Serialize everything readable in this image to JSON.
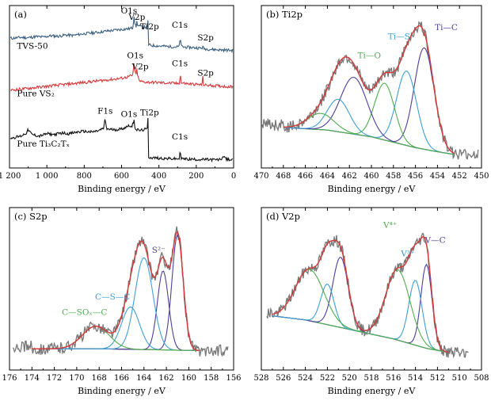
{
  "chart_data": [
    {
      "id": "a",
      "type": "line",
      "title": "(a)",
      "xlabel": "Binding energy / eV",
      "xlim": [
        1200,
        0
      ],
      "xticks": [
        1200,
        1000,
        800,
        600,
        400,
        200,
        0
      ],
      "xtick_labels": [
        "1 200",
        "1 000",
        "800",
        "600",
        "400",
        "200",
        "0"
      ],
      "series": [
        {
          "name": "TVS-50",
          "color": "#3a5f7f",
          "x": [
            1180,
            1140,
            1100,
            1060,
            1020,
            980,
            940,
            900,
            860,
            820,
            780,
            740,
            700,
            680,
            660,
            620,
            580,
            560,
            540,
            533,
            528,
            525,
            520,
            517,
            514,
            505,
            480,
            462,
            458,
            455,
            445,
            420,
            380,
            340,
            300,
            290,
            285,
            282,
            270,
            240,
            200,
            170,
            165,
            160,
            150,
            120,
            80,
            40,
            10
          ],
          "y": [
            0.815,
            0.82,
            0.818,
            0.825,
            0.822,
            0.83,
            0.827,
            0.835,
            0.832,
            0.84,
            0.846,
            0.85,
            0.856,
            0.86,
            0.862,
            0.868,
            0.872,
            0.875,
            0.88,
            0.955,
            0.9,
            0.892,
            0.885,
            0.94,
            0.895,
            0.89,
            0.885,
            0.882,
            0.93,
            0.775,
            0.77,
            0.768,
            0.765,
            0.762,
            0.76,
            0.765,
            0.83,
            0.765,
            0.76,
            0.757,
            0.755,
            0.752,
            0.76,
            0.75,
            0.748,
            0.745,
            0.742,
            0.74,
            0.738
          ]
        },
        {
          "name": "Pure VS2",
          "color": "#d63a3a",
          "x": [
            1180,
            1140,
            1100,
            1060,
            1020,
            980,
            940,
            900,
            860,
            820,
            780,
            740,
            700,
            660,
            620,
            580,
            560,
            540,
            533,
            528,
            525,
            520,
            517,
            514,
            505,
            480,
            440,
            400,
            360,
            320,
            300,
            290,
            285,
            282,
            270,
            240,
            200,
            170,
            165,
            162,
            155,
            120,
            80,
            40,
            10
          ],
          "y": [
            0.49,
            0.495,
            0.5,
            0.505,
            0.51,
            0.515,
            0.52,
            0.525,
            0.53,
            0.535,
            0.54,
            0.545,
            0.55,
            0.555,
            0.56,
            0.568,
            0.575,
            0.58,
            0.66,
            0.6,
            0.59,
            0.585,
            0.64,
            0.58,
            0.545,
            0.54,
            0.538,
            0.536,
            0.534,
            0.532,
            0.53,
            0.535,
            0.6,
            0.535,
            0.532,
            0.528,
            0.525,
            0.522,
            0.57,
            0.525,
            0.52,
            0.518,
            0.515,
            0.512,
            0.51
          ]
        },
        {
          "name": "Pure Ti3C2Tx",
          "color": "#111111",
          "x": [
            1180,
            1140,
            1110,
            1100,
            1080,
            1040,
            1000,
            960,
            920,
            880,
            840,
            800,
            760,
            720,
            695,
            688,
            680,
            640,
            600,
            570,
            560,
            545,
            533,
            528,
            520,
            500,
            480,
            462,
            458,
            455,
            445,
            420,
            380,
            340,
            300,
            290,
            285,
            282,
            270,
            240,
            200,
            160,
            120,
            80,
            60,
            55,
            40,
            10
          ],
          "y": [
            0.19,
            0.2,
            0.22,
            0.24,
            0.21,
            0.2,
            0.215,
            0.21,
            0.22,
            0.215,
            0.225,
            0.23,
            0.225,
            0.235,
            0.25,
            0.31,
            0.245,
            0.24,
            0.245,
            0.26,
            0.27,
            0.255,
            0.305,
            0.25,
            0.24,
            0.235,
            0.24,
            0.245,
            0.33,
            0.07,
            0.065,
            0.063,
            0.06,
            0.058,
            0.057,
            0.06,
            0.12,
            0.06,
            0.057,
            0.055,
            0.054,
            0.053,
            0.052,
            0.051,
            0.06,
            0.08,
            0.055,
            0.05
          ]
        }
      ],
      "series_labels": [
        {
          "text": "TVS-50",
          "x": 1160,
          "y": 0.75
        },
        {
          "text": "Pure VS₂",
          "x": 1160,
          "y": 0.45
        },
        {
          "text": "Pure Ti₃C₂Tₓ",
          "x": 1160,
          "y": 0.135
        }
      ],
      "annotations": [
        {
          "text": "O1s",
          "x": 560,
          "y": 0.97
        },
        {
          "text": "V2p",
          "x": 518,
          "y": 0.93
        },
        {
          "text": "Ti2p",
          "x": 450,
          "y": 0.87
        },
        {
          "text": "C1s",
          "x": 288,
          "y": 0.88
        },
        {
          "text": "S2p",
          "x": 150,
          "y": 0.8
        },
        {
          "text": "O1s",
          "x": 527,
          "y": 0.69
        },
        {
          "text": "V2p",
          "x": 500,
          "y": 0.62
        },
        {
          "text": "C1s",
          "x": 288,
          "y": 0.64
        },
        {
          "text": "S2p",
          "x": 150,
          "y": 0.58
        },
        {
          "text": "F1s",
          "x": 688,
          "y": 0.34
        },
        {
          "text": "O1s",
          "x": 560,
          "y": 0.32
        },
        {
          "text": "Ti2p",
          "x": 450,
          "y": 0.33
        },
        {
          "text": "C1s",
          "x": 288,
          "y": 0.18
        }
      ]
    },
    {
      "id": "b",
      "type": "line",
      "title": "(b)  Ti2p",
      "xlabel": "Binding energy / eV",
      "xlim": [
        470,
        450
      ],
      "xticks": [
        470,
        468,
        466,
        464,
        462,
        460,
        458,
        456,
        454,
        452,
        450
      ],
      "xtick_labels": [
        "470",
        "468",
        "466",
        "464",
        "462",
        "460",
        "458",
        "456",
        "454",
        "452",
        "450"
      ],
      "fit_components": [
        {
          "name": "Ti—C",
          "center": 455.2,
          "height": 0.75,
          "width": 0.9,
          "color": "#4b3f9b"
        },
        {
          "name": "Ti—S",
          "center": 456.8,
          "height": 0.55,
          "width": 0.9,
          "color": "#3f9fd6"
        },
        {
          "name": "Ti—O",
          "center": 458.8,
          "height": 0.42,
          "width": 0.9,
          "color": "#4fae4f"
        },
        {
          "name": "",
          "center": 461.6,
          "height": 0.42,
          "width": 1.2,
          "color": "#4b3f9b"
        },
        {
          "name": "",
          "center": 463.0,
          "height": 0.24,
          "width": 1.0,
          "color": "#3f9fd6"
        },
        {
          "name": "",
          "center": 464.6,
          "height": 0.12,
          "width": 1.2,
          "color": "#4fae4f"
        }
      ],
      "background": {
        "x": [
          468,
          464,
          460,
          458,
          456,
          454,
          452.5
        ],
        "y": [
          0.2,
          0.18,
          0.13,
          0.09,
          0.05,
          0.02,
          0.0
        ],
        "color": "#e89a3a"
      },
      "envelope_color": "#d63a3a",
      "raw_color": "#777777",
      "raw_xrange": [
        470,
        450.3
      ],
      "ylim": [
        -0.1,
        1.1
      ],
      "annotations": [
        {
          "text": "Ti—C",
          "x": 453.2,
          "y": 0.92,
          "color": "#4b3f9b"
        },
        {
          "text": "Ti—S",
          "x": 457.5,
          "y": 0.85,
          "color": "#3f9fd6"
        },
        {
          "text": "Ti—O",
          "x": 460.2,
          "y": 0.71,
          "color": "#4fae4f"
        }
      ]
    },
    {
      "id": "c",
      "type": "line",
      "title": "(c)  S2p",
      "xlabel": "Binding energy / eV",
      "xlim": [
        176,
        156
      ],
      "xticks": [
        176,
        174,
        172,
        170,
        168,
        166,
        164,
        162,
        160,
        158,
        156
      ],
      "xtick_labels": [
        "176",
        "174",
        "172",
        "170",
        "168",
        "166",
        "164",
        "162",
        "160",
        "158",
        "156"
      ],
      "fit_components": [
        {
          "name": "S²⁻",
          "center": 161.0,
          "height": 0.82,
          "width": 0.5,
          "color": "#4b3f9b"
        },
        {
          "name": "",
          "center": 162.3,
          "height": 0.56,
          "width": 0.5,
          "color": "#4b3f9b"
        },
        {
          "name": "C—S—C",
          "center": 164.0,
          "height": 0.65,
          "width": 0.8,
          "color": "#3f9fd6"
        },
        {
          "name": "",
          "center": 165.2,
          "height": 0.3,
          "width": 0.8,
          "color": "#3f9fd6"
        },
        {
          "name": "C—SOx—C",
          "center": 168.3,
          "height": 0.16,
          "width": 1.2,
          "color": "#4fae4f"
        }
      ],
      "background": {
        "x": [
          174,
          168,
          164,
          161,
          159
        ],
        "y": [
          0.05,
          0.05,
          0.045,
          0.04,
          0.038
        ],
        "color": "#e89a3a"
      },
      "envelope_color": "#d63a3a",
      "raw_color": "#777777",
      "raw_xrange": [
        175.7,
        156.5
      ],
      "ylim": [
        -0.1,
        1.05
      ],
      "annotations": [
        {
          "text": "S²⁻",
          "x": 162.7,
          "y": 0.73,
          "color": "#4b3f9b"
        },
        {
          "text": "C—S—C",
          "x": 166.8,
          "y": 0.4,
          "color": "#3f9fd6"
        },
        {
          "text": "C—SOₓ—C",
          "x": 169.3,
          "y": 0.29,
          "color": "#4fae4f"
        }
      ]
    },
    {
      "id": "d",
      "type": "line",
      "title": "(d)  V2p",
      "xlabel": "Binding energy / eV",
      "xlim": [
        528,
        508
      ],
      "xticks": [
        528,
        526,
        524,
        522,
        520,
        518,
        516,
        514,
        512,
        510,
        508
      ],
      "xtick_labels": [
        "528",
        "526",
        "524",
        "522",
        "520",
        "518",
        "516",
        "514",
        "512",
        "510",
        "508"
      ],
      "fit_components": [
        {
          "name": "V—C",
          "center": 513.0,
          "height": 0.62,
          "width": 0.5,
          "color": "#4b3f9b"
        },
        {
          "name": "V³⁺",
          "center": 514.0,
          "height": 0.48,
          "width": 0.6,
          "color": "#3f9fd6"
        },
        {
          "name": "V⁴⁺",
          "center": 515.6,
          "height": 0.52,
          "width": 1.1,
          "color": "#4fae4f"
        },
        {
          "name": "",
          "center": 520.8,
          "height": 0.52,
          "width": 0.7,
          "color": "#4b3f9b"
        },
        {
          "name": "",
          "center": 522.0,
          "height": 0.3,
          "width": 0.6,
          "color": "#3f9fd6"
        },
        {
          "name": "",
          "center": 523.6,
          "height": 0.38,
          "width": 1.3,
          "color": "#4fae4f"
        }
      ],
      "background": {
        "x": [
          527,
          524,
          520,
          516,
          513,
          511
        ],
        "y": [
          0.3,
          0.27,
          0.2,
          0.13,
          0.06,
          0.03
        ],
        "color": "#e89a3a"
      },
      "envelope_color": "#d63a3a",
      "raw_color": "#777777",
      "raw_xrange": [
        527.5,
        509.2
      ],
      "ylim": [
        -0.1,
        1.1
      ],
      "annotations": [
        {
          "text": "V⁴⁺",
          "x": 516.3,
          "y": 0.95,
          "color": "#4fae4f"
        },
        {
          "text": "V³⁺",
          "x": 514.7,
          "y": 0.74,
          "color": "#3f9fd6"
        },
        {
          "text": "V—C",
          "x": 512.2,
          "y": 0.84,
          "color": "#4b3f9b"
        }
      ]
    }
  ]
}
